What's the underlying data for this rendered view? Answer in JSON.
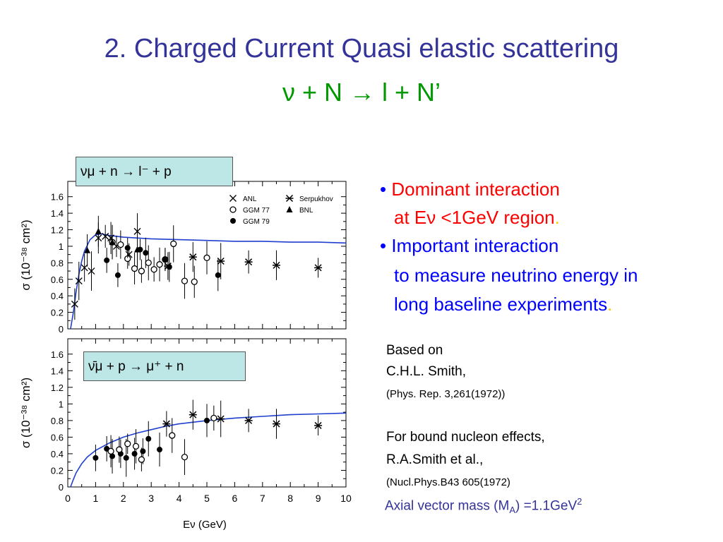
{
  "slide": {
    "title": "2. Charged Current Quasi elastic scattering",
    "reaction": "ν + N → l + N’",
    "box1": "νμ + n → l⁻ + p",
    "box2": "ν̄μ + p → μ⁺ + n",
    "bullets": [
      {
        "bullet": "•",
        "line1": "Dominant interaction",
        "line2_a": "at Eν <1GeV region",
        "line2_b": "."
      },
      {
        "bullet": "•",
        "line1": "Important interaction",
        "line2": "to measure neutrino energy in",
        "line3": "long baseline experiments",
        "line3_end": "."
      }
    ],
    "refs": {
      "based_on": "Based on",
      "smith": "C.H.L. Smith,",
      "smith_ref": "(Phys. Rep. 3,261(1972))",
      "bound": "For bound nucleon effects,",
      "rasmith": "R.A.Smith et al.,",
      "rasmith_ref": "(Nucl.Phys.B43 605(1972)",
      "axial_a": "Axial vector mass (M",
      "axial_sub": "A",
      "axial_b": ") =1.1GeV",
      "axial_sup": "2"
    }
  },
  "chart_data": [
    {
      "type": "scatter",
      "xlabel": "Eν (GeV)",
      "ylabel": "σ (10⁻³⁸ cm²)",
      "xlim": [
        0,
        10
      ],
      "ylim": [
        0,
        1.7
      ],
      "yticks": [
        "0",
        "0.2",
        "0.4",
        "0.6",
        "0.8",
        "1",
        "1.2",
        "1.4",
        "1.6"
      ],
      "legend": [
        {
          "marker": "x",
          "label": "ANL"
        },
        {
          "marker": "open-circle",
          "label": "GGM 77"
        },
        {
          "marker": "filled-circle",
          "label": "GGM 79"
        },
        {
          "marker": "asterisk",
          "label": "Serpukhov"
        },
        {
          "marker": "triangle",
          "label": "BNL"
        }
      ],
      "series": [
        {
          "name": "ANL",
          "marker": "x",
          "points": [
            [
              0.25,
              0.3
            ],
            [
              0.4,
              0.58
            ],
            [
              0.6,
              0.74
            ],
            [
              0.85,
              0.7
            ],
            [
              1.1,
              1.1
            ],
            [
              1.35,
              1.12
            ],
            [
              1.55,
              1.1
            ],
            [
              2.5,
              1.18
            ],
            [
              1.75,
              1.0
            ],
            [
              2.2,
              0.9
            ]
          ]
        },
        {
          "name": "GGM 77",
          "marker": "open-circle",
          "points": [
            [
              1.6,
              1.05
            ],
            [
              1.9,
              1.02
            ],
            [
              2.15,
              0.85
            ],
            [
              2.4,
              0.73
            ],
            [
              2.65,
              0.7
            ],
            [
              2.9,
              0.8
            ],
            [
              3.1,
              0.72
            ],
            [
              3.3,
              0.78
            ],
            [
              3.5,
              0.84
            ],
            [
              3.8,
              1.03
            ],
            [
              4.2,
              0.58
            ],
            [
              4.55,
              0.57
            ],
            [
              5.0,
              0.86
            ]
          ]
        },
        {
          "name": "GGM 79",
          "marker": "filled-circle",
          "points": [
            [
              1.4,
              0.83
            ],
            [
              1.8,
              0.65
            ],
            [
              2.15,
              0.98
            ],
            [
              2.6,
              0.96
            ],
            [
              2.8,
              0.92
            ],
            [
              3.5,
              0.84
            ],
            [
              3.65,
              0.75
            ],
            [
              5.4,
              0.65
            ]
          ]
        },
        {
          "name": "Serpukhov",
          "marker": "asterisk",
          "points": [
            [
              3.6,
              0.76
            ],
            [
              4.5,
              0.87
            ],
            [
              5.5,
              0.82
            ],
            [
              6.5,
              0.81
            ],
            [
              7.5,
              0.77
            ],
            [
              9.0,
              0.74
            ]
          ]
        },
        {
          "name": "BNL",
          "marker": "triangle",
          "points": [
            [
              0.7,
              0.95
            ],
            [
              1.1,
              1.18
            ],
            [
              1.6,
              1.05
            ],
            [
              2.5,
              0.96
            ]
          ]
        }
      ],
      "theory_curve": {
        "x": [
          0.1,
          0.2,
          0.3,
          0.4,
          0.5,
          0.6,
          0.8,
          1.0,
          1.2,
          1.5,
          2,
          3,
          4,
          5,
          6,
          7,
          8,
          9,
          10
        ],
        "y": [
          0.0,
          0.2,
          0.45,
          0.66,
          0.82,
          0.94,
          1.08,
          1.14,
          1.15,
          1.13,
          1.11,
          1.09,
          1.08,
          1.07,
          1.06,
          1.06,
          1.05,
          1.05,
          1.04
        ]
      }
    },
    {
      "type": "scatter",
      "xlabel": "Eν (GeV)",
      "ylabel": "σ (10⁻³⁸ cm²)",
      "xlim": [
        0,
        10
      ],
      "ylim": [
        0,
        1.7
      ],
      "yticks": [
        "0",
        "0.2",
        "0.4",
        "0.6",
        "0.8",
        "1",
        "1.2",
        "1.4",
        "1.6"
      ],
      "xticks": [
        "0",
        "1",
        "2",
        "3",
        "4",
        "5",
        "6",
        "7",
        "8",
        "9",
        "10"
      ],
      "series": [
        {
          "name": "GGM 79",
          "marker": "filled-circle",
          "points": [
            [
              1.0,
              0.35
            ],
            [
              1.4,
              0.46
            ],
            [
              1.6,
              0.37
            ],
            [
              1.9,
              0.4
            ],
            [
              2.1,
              0.35
            ],
            [
              2.4,
              0.4
            ],
            [
              2.7,
              0.43
            ],
            [
              2.9,
              0.58
            ],
            [
              3.3,
              0.45
            ],
            [
              5.0,
              0.8
            ]
          ]
        },
        {
          "name": "GGM 77",
          "marker": "open-circle",
          "points": [
            [
              1.55,
              0.43
            ],
            [
              1.85,
              0.45
            ],
            [
              2.15,
              0.52
            ],
            [
              2.45,
              0.49
            ],
            [
              2.65,
              0.33
            ],
            [
              3.75,
              0.62
            ],
            [
              4.2,
              0.36
            ],
            [
              5.25,
              0.83
            ]
          ]
        },
        {
          "name": "Serpukhov",
          "marker": "asterisk",
          "points": [
            [
              3.55,
              0.76
            ],
            [
              4.5,
              0.87
            ],
            [
              5.5,
              0.82
            ],
            [
              6.5,
              0.8
            ],
            [
              7.5,
              0.76
            ],
            [
              9.0,
              0.74
            ]
          ]
        }
      ],
      "theory_curve": {
        "x": [
          0.1,
          0.2,
          0.3,
          0.5,
          0.7,
          1.0,
          1.5,
          2,
          2.5,
          3,
          3.5,
          4,
          5,
          6,
          7,
          8,
          9,
          10
        ],
        "y": [
          0.0,
          0.09,
          0.17,
          0.28,
          0.36,
          0.44,
          0.53,
          0.6,
          0.65,
          0.69,
          0.73,
          0.76,
          0.8,
          0.83,
          0.85,
          0.87,
          0.88,
          0.89
        ]
      }
    }
  ]
}
